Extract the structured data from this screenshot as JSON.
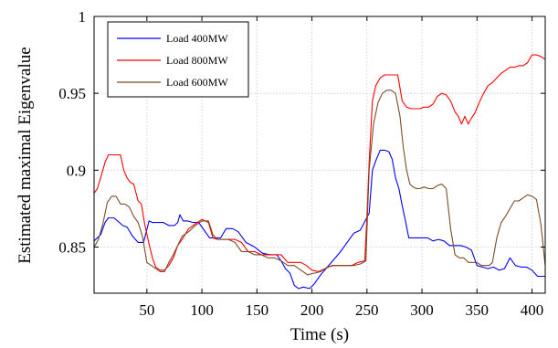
{
  "chart_data": {
    "type": "line",
    "title": "",
    "xlabel": "Time (s)",
    "ylabel": "Estimated maximal Eigenvalue",
    "xlim": [
      2,
      412
    ],
    "ylim": [
      0.82,
      1.0
    ],
    "xticks": [
      50,
      100,
      150,
      200,
      250,
      300,
      350,
      400
    ],
    "yticks": [
      0.85,
      0.9,
      0.95,
      1.0
    ],
    "xtick_labels": [
      "50",
      "100",
      "150",
      "200",
      "250",
      "300",
      "350",
      "400"
    ],
    "ytick_labels": [
      "0.85",
      "0.9",
      "0.95",
      "1"
    ],
    "grid": true,
    "legend_position": "top-left",
    "series": [
      {
        "name": "Load 400MW",
        "color": "#0000ff",
        "x": [
          2,
          8,
          12,
          15,
          20,
          25,
          28,
          32,
          37,
          42,
          47,
          52,
          55,
          60,
          65,
          70,
          75,
          78,
          80,
          83,
          87,
          92,
          97,
          102,
          107,
          112,
          117,
          122,
          128,
          133,
          140,
          148,
          155,
          162,
          168,
          172,
          176,
          180,
          184,
          188,
          192,
          198,
          202,
          208,
          214,
          220,
          226,
          232,
          238,
          244,
          249,
          252,
          255,
          258,
          262,
          266,
          270,
          273,
          276,
          279,
          282,
          285,
          288,
          291,
          294,
          297,
          300,
          305,
          310,
          315,
          320,
          325,
          330,
          335,
          340,
          345,
          350,
          355,
          360,
          365,
          370,
          375,
          380,
          385,
          390,
          395,
          400,
          405,
          412
        ],
        "y": [
          0.854,
          0.858,
          0.866,
          0.869,
          0.869,
          0.866,
          0.864,
          0.863,
          0.857,
          0.853,
          0.853,
          0.867,
          0.866,
          0.866,
          0.866,
          0.864,
          0.864,
          0.866,
          0.871,
          0.867,
          0.867,
          0.866,
          0.866,
          0.861,
          0.856,
          0.856,
          0.856,
          0.862,
          0.862,
          0.86,
          0.853,
          0.85,
          0.846,
          0.845,
          0.845,
          0.841,
          0.836,
          0.833,
          0.825,
          0.823,
          0.824,
          0.823,
          0.826,
          0.832,
          0.837,
          0.842,
          0.847,
          0.853,
          0.859,
          0.861,
          0.868,
          0.872,
          0.9,
          0.906,
          0.913,
          0.913,
          0.912,
          0.907,
          0.895,
          0.888,
          0.877,
          0.867,
          0.856,
          0.856,
          0.856,
          0.856,
          0.856,
          0.856,
          0.854,
          0.855,
          0.854,
          0.851,
          0.851,
          0.851,
          0.85,
          0.848,
          0.838,
          0.837,
          0.836,
          0.837,
          0.835,
          0.836,
          0.843,
          0.838,
          0.837,
          0.837,
          0.835,
          0.831,
          0.831
        ]
      },
      {
        "name": "Load 800MW",
        "color": "#ff0000",
        "x": [
          2,
          5,
          8,
          12,
          15,
          18,
          22,
          26,
          29,
          32,
          35,
          38,
          42,
          45,
          48,
          52,
          55,
          58,
          62,
          66,
          70,
          74,
          78,
          82,
          88,
          94,
          100,
          106,
          110,
          114,
          118,
          124,
          130,
          136,
          142,
          148,
          154,
          160,
          166,
          172,
          178,
          184,
          190,
          195,
          200,
          206,
          212,
          218,
          224,
          230,
          236,
          242,
          248,
          250,
          252,
          255,
          258,
          262,
          266,
          270,
          274,
          278,
          282,
          286,
          290,
          294,
          298,
          302,
          306,
          310,
          314,
          318,
          322,
          326,
          330,
          333,
          336,
          339,
          342,
          345,
          348,
          352,
          356,
          360,
          364,
          368,
          372,
          376,
          380,
          384,
          388,
          392,
          396,
          400,
          404,
          408,
          412
        ],
        "y": [
          0.885,
          0.888,
          0.895,
          0.905,
          0.91,
          0.91,
          0.91,
          0.91,
          0.9,
          0.895,
          0.892,
          0.891,
          0.88,
          0.878,
          0.865,
          0.852,
          0.843,
          0.837,
          0.835,
          0.835,
          0.838,
          0.843,
          0.851,
          0.855,
          0.862,
          0.865,
          0.868,
          0.866,
          0.856,
          0.855,
          0.855,
          0.855,
          0.855,
          0.853,
          0.847,
          0.847,
          0.845,
          0.845,
          0.845,
          0.845,
          0.84,
          0.84,
          0.84,
          0.838,
          0.835,
          0.834,
          0.836,
          0.838,
          0.838,
          0.838,
          0.838,
          0.84,
          0.841,
          0.87,
          0.905,
          0.945,
          0.955,
          0.96,
          0.962,
          0.962,
          0.962,
          0.962,
          0.945,
          0.941,
          0.94,
          0.94,
          0.94,
          0.941,
          0.941,
          0.943,
          0.948,
          0.95,
          0.949,
          0.945,
          0.938,
          0.935,
          0.93,
          0.935,
          0.93,
          0.934,
          0.937,
          0.944,
          0.95,
          0.955,
          0.957,
          0.96,
          0.963,
          0.965,
          0.967,
          0.967,
          0.968,
          0.968,
          0.97,
          0.975,
          0.975,
          0.974,
          0.972
        ]
      },
      {
        "name": "Load 600MW",
        "color": "#7b4b26",
        "x": [
          2,
          6,
          10,
          14,
          18,
          22,
          26,
          30,
          34,
          38,
          42,
          46,
          50,
          54,
          58,
          62,
          66,
          70,
          74,
          78,
          82,
          88,
          94,
          100,
          106,
          110,
          114,
          118,
          124,
          130,
          136,
          142,
          148,
          154,
          160,
          166,
          172,
          178,
          184,
          190,
          196,
          202,
          208,
          214,
          220,
          226,
          232,
          238,
          244,
          249,
          252,
          256,
          260,
          264,
          268,
          272,
          276,
          280,
          283,
          286,
          289,
          292,
          295,
          298,
          302,
          306,
          310,
          314,
          318,
          322,
          326,
          330,
          334,
          338,
          342,
          346,
          350,
          354,
          358,
          361,
          364,
          368,
          372,
          376,
          380,
          384,
          388,
          392,
          396,
          400,
          404,
          408,
          412
        ],
        "y": [
          0.85,
          0.855,
          0.865,
          0.879,
          0.883,
          0.883,
          0.878,
          0.878,
          0.876,
          0.87,
          0.866,
          0.857,
          0.84,
          0.838,
          0.836,
          0.834,
          0.834,
          0.84,
          0.845,
          0.851,
          0.857,
          0.86,
          0.864,
          0.867,
          0.867,
          0.858,
          0.855,
          0.855,
          0.855,
          0.853,
          0.847,
          0.847,
          0.845,
          0.845,
          0.843,
          0.843,
          0.841,
          0.838,
          0.838,
          0.835,
          0.832,
          0.833,
          0.834,
          0.837,
          0.838,
          0.838,
          0.838,
          0.838,
          0.839,
          0.841,
          0.9,
          0.93,
          0.944,
          0.95,
          0.952,
          0.952,
          0.95,
          0.935,
          0.915,
          0.9,
          0.891,
          0.889,
          0.888,
          0.888,
          0.889,
          0.888,
          0.888,
          0.89,
          0.891,
          0.888,
          0.862,
          0.845,
          0.843,
          0.843,
          0.84,
          0.84,
          0.84,
          0.838,
          0.838,
          0.838,
          0.84,
          0.856,
          0.866,
          0.87,
          0.875,
          0.88,
          0.88,
          0.882,
          0.884,
          0.883,
          0.881,
          0.865,
          0.838
        ]
      }
    ]
  }
}
